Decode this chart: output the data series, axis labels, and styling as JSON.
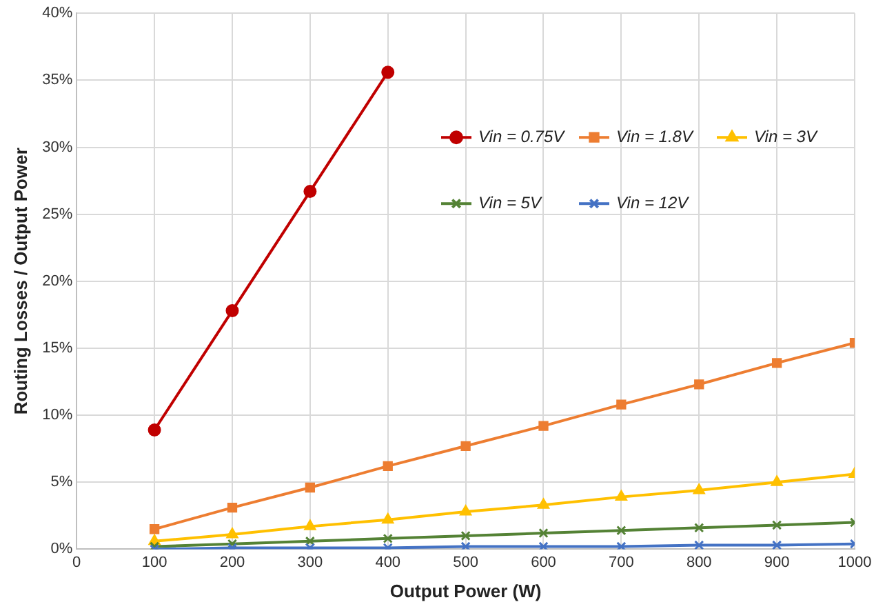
{
  "chart_data": {
    "type": "line",
    "xlabel": "Output Power (W)",
    "ylabel": "Routing Losses / Output Power",
    "x": [
      100,
      200,
      300,
      400,
      500,
      600,
      700,
      800,
      900,
      1000
    ],
    "xlim": [
      0,
      1000
    ],
    "xticks": [
      0,
      100,
      200,
      300,
      400,
      500,
      600,
      700,
      800,
      900,
      1000
    ],
    "ylim": [
      0,
      40
    ],
    "yticks": [
      {
        "value": 0,
        "label": "0%"
      },
      {
        "value": 5,
        "label": "5%"
      },
      {
        "value": 10,
        "label": "10%"
      },
      {
        "value": 15,
        "label": "15%"
      },
      {
        "value": 20,
        "label": "20%"
      },
      {
        "value": 25,
        "label": "25%"
      },
      {
        "value": 30,
        "label": "30%"
      },
      {
        "value": 35,
        "label": "35%"
      },
      {
        "value": 40,
        "label": "40%"
      }
    ],
    "grid": true,
    "legend": "top right",
    "series": [
      {
        "name": "Vin = 0.75V",
        "color": "#c00000",
        "marker": "circle",
        "values": [
          8.9,
          17.8,
          26.7,
          35.6,
          null,
          null,
          null,
          null,
          null,
          null
        ]
      },
      {
        "name": "Vin = 1.8V",
        "color": "#ed7d31",
        "marker": "square",
        "values": [
          1.5,
          3.1,
          4.6,
          6.2,
          7.7,
          9.2,
          10.8,
          12.3,
          13.9,
          15.4
        ]
      },
      {
        "name": "Vin = 3V",
        "color": "#ffc000",
        "marker": "triangle",
        "values": [
          0.6,
          1.1,
          1.7,
          2.2,
          2.8,
          3.3,
          3.9,
          4.4,
          5.0,
          5.6
        ]
      },
      {
        "name": "Vin = 5V",
        "color": "#548235",
        "marker": "cross",
        "values": [
          0.2,
          0.4,
          0.6,
          0.8,
          1.0,
          1.2,
          1.4,
          1.6,
          1.8,
          2.0
        ]
      },
      {
        "name": "Vin = 12V",
        "color": "#4472c4",
        "marker": "cross",
        "values": [
          0.0,
          0.1,
          0.1,
          0.1,
          0.2,
          0.2,
          0.2,
          0.3,
          0.3,
          0.4
        ]
      }
    ]
  }
}
